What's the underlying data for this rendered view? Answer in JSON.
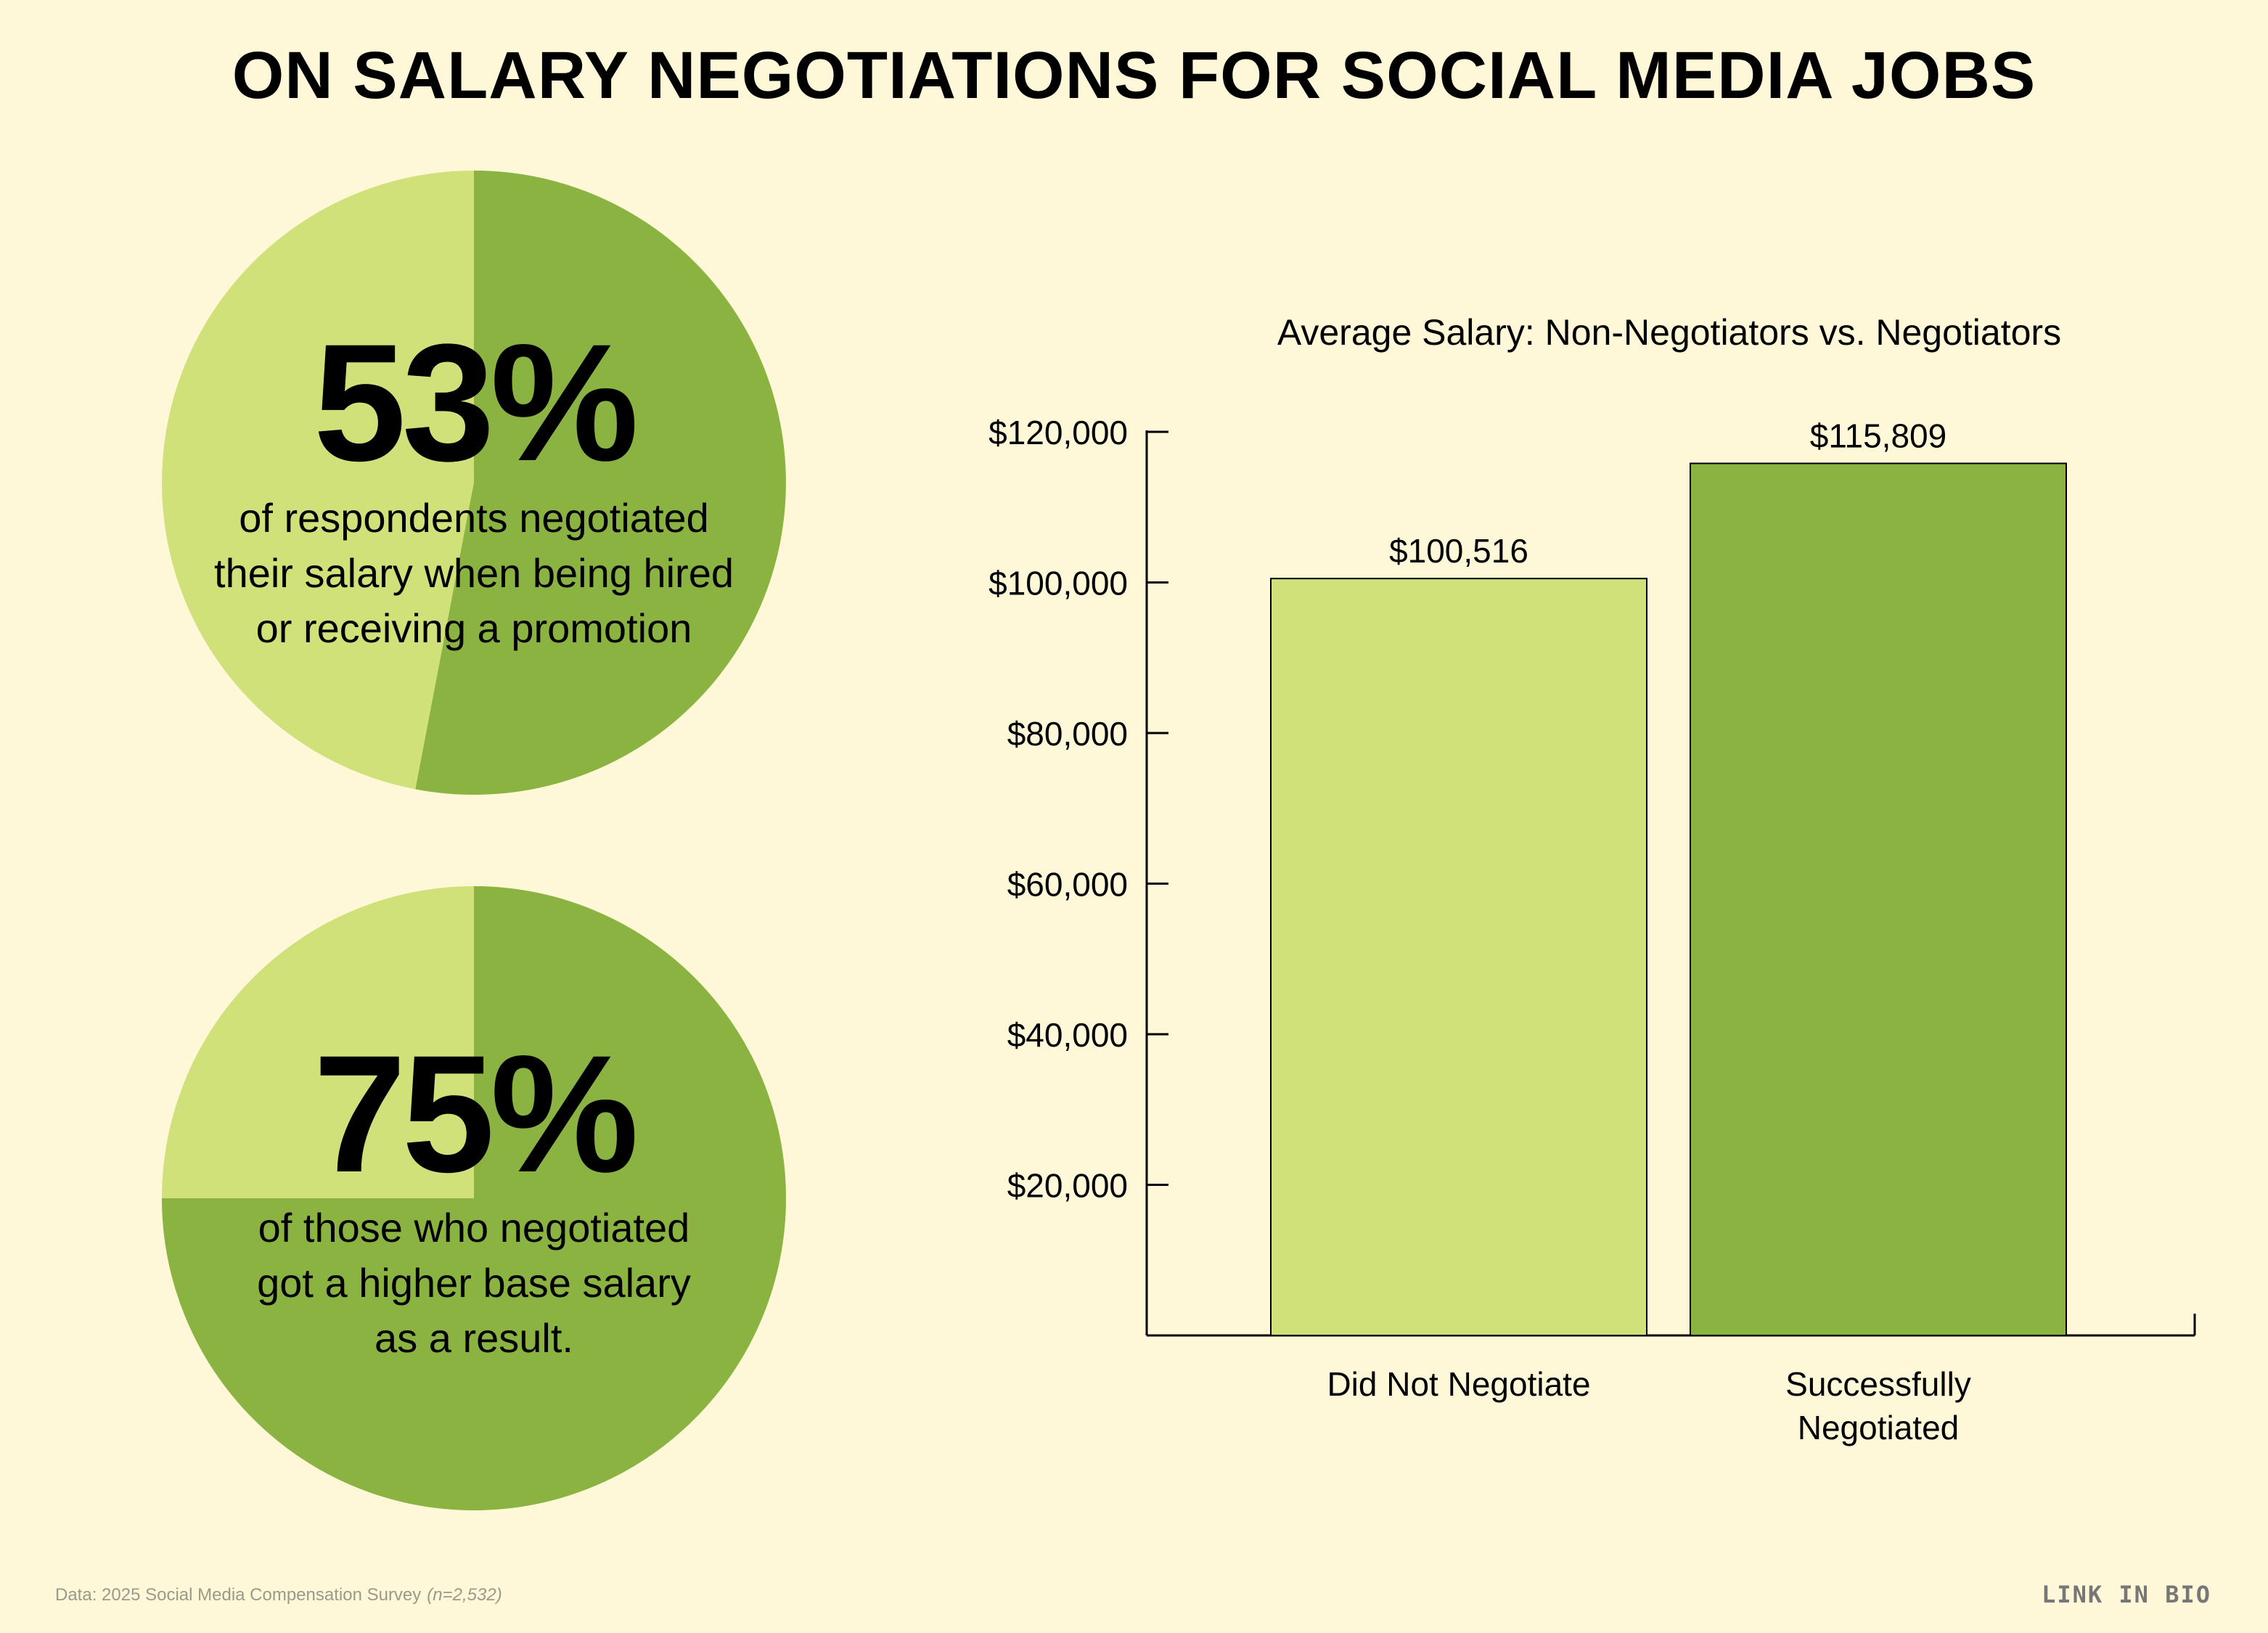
{
  "title": "ON SALARY NEGOTIATIONS FOR SOCIAL MEDIA JOBS",
  "colors": {
    "background": "#FEF8D8",
    "light_green": "#D1E17A",
    "dark_green": "#8BB342"
  },
  "stats": [
    {
      "percent_value": 53,
      "percent_label": "53%",
      "caption_lines": [
        "of respondents negotiated",
        "their salary when being hired",
        "or receiving a promotion"
      ]
    },
    {
      "percent_value": 75,
      "percent_label": "75%",
      "caption_lines": [
        "of those who negotiated",
        "got a higher base salary",
        "as a result."
      ]
    }
  ],
  "chart_data": {
    "type": "bar",
    "title": "Average Salary: Non-Negotiators vs. Negotiators",
    "categories": [
      [
        "Did Not Negotiate"
      ],
      [
        "Successfully",
        "Negotiated"
      ]
    ],
    "values": [
      100516,
      115809
    ],
    "value_labels": [
      "$100,516",
      "$115,809"
    ],
    "ylim": [
      0,
      120000
    ],
    "yticks": [
      20000,
      40000,
      60000,
      80000,
      100000,
      120000
    ],
    "ytick_labels": [
      "$20,000",
      "$40,000",
      "$60,000",
      "$80,000",
      "$100,000",
      "$120,000"
    ],
    "bar_colors": [
      "#D1E17A",
      "#8BB342"
    ],
    "grid": false,
    "legend": "none"
  },
  "footer": {
    "source": "Data: 2025 Social Media Compensation Survey",
    "sample": "(n=2,532)",
    "logo": "LINK IN BIO"
  }
}
